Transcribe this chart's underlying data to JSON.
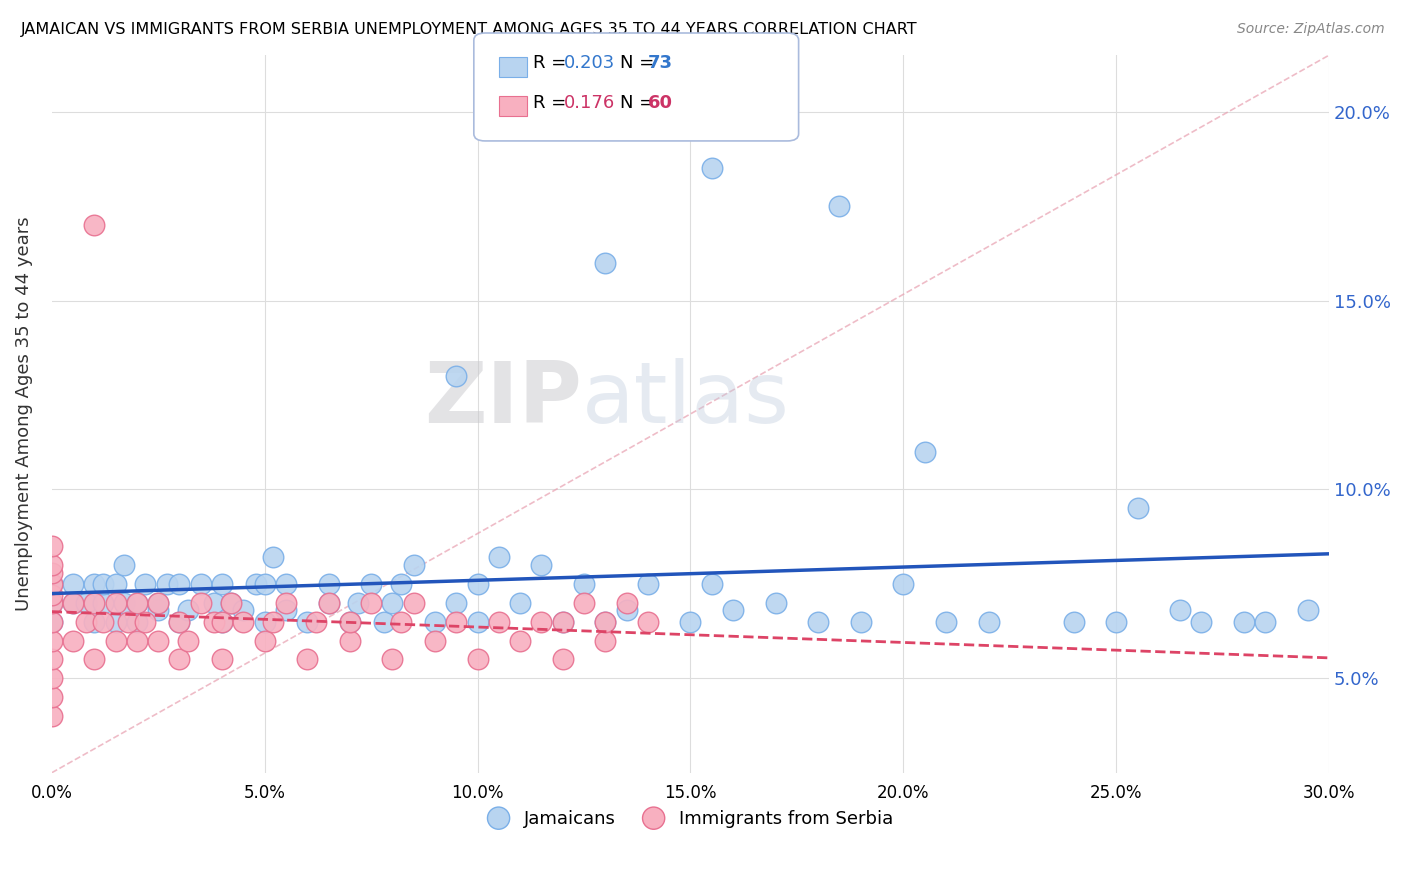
{
  "title": "JAMAICAN VS IMMIGRANTS FROM SERBIA UNEMPLOYMENT AMONG AGES 35 TO 44 YEARS CORRELATION CHART",
  "source": "Source: ZipAtlas.com",
  "ylabel": "Unemployment Among Ages 35 to 44 years",
  "xmin": 0.0,
  "xmax": 0.3,
  "ymin": 0.025,
  "ymax": 0.215,
  "jamaicans_color": "#b8d4f0",
  "jamaicans_edge_color": "#7aafe8",
  "serbia_color": "#f8b0c0",
  "serbia_edge_color": "#e87090",
  "trend_jamaicans_color": "#2255bb",
  "trend_serbia_color": "#dd4466",
  "trend_serbia_style": "--",
  "legend_R_jamaicans": "0.203",
  "legend_N_jamaicans": "73",
  "legend_R_serbia": "0.176",
  "legend_N_serbia": "60",
  "watermark_zip": "ZIP",
  "watermark_atlas": "atlas",
  "right_axis_color": "#3366cc",
  "yticks": [
    0.05,
    0.1,
    0.15,
    0.2
  ],
  "xticks": [
    0.0,
    0.05,
    0.1,
    0.15,
    0.2,
    0.25,
    0.3
  ],
  "jamaicans_x": [
    0.0,
    0.0,
    0.0,
    0.005,
    0.005,
    0.008,
    0.01,
    0.01,
    0.012,
    0.012,
    0.015,
    0.015,
    0.017,
    0.017,
    0.02,
    0.02,
    0.022,
    0.025,
    0.025,
    0.027,
    0.03,
    0.03,
    0.032,
    0.035,
    0.038,
    0.04,
    0.04,
    0.042,
    0.045,
    0.048,
    0.05,
    0.05,
    0.052,
    0.055,
    0.055,
    0.06,
    0.065,
    0.065,
    0.07,
    0.072,
    0.075,
    0.078,
    0.08,
    0.082,
    0.085,
    0.09,
    0.095,
    0.1,
    0.1,
    0.105,
    0.11,
    0.115,
    0.12,
    0.125,
    0.13,
    0.135,
    0.14,
    0.15,
    0.155,
    0.16,
    0.17,
    0.18,
    0.19,
    0.2,
    0.21,
    0.22,
    0.24,
    0.25,
    0.265,
    0.27,
    0.28,
    0.285,
    0.295
  ],
  "jamaicans_y": [
    0.07,
    0.075,
    0.065,
    0.07,
    0.075,
    0.07,
    0.065,
    0.075,
    0.07,
    0.075,
    0.065,
    0.075,
    0.07,
    0.08,
    0.065,
    0.07,
    0.075,
    0.068,
    0.07,
    0.075,
    0.065,
    0.075,
    0.068,
    0.075,
    0.07,
    0.065,
    0.075,
    0.07,
    0.068,
    0.075,
    0.065,
    0.075,
    0.082,
    0.068,
    0.075,
    0.065,
    0.07,
    0.075,
    0.065,
    0.07,
    0.075,
    0.065,
    0.07,
    0.075,
    0.08,
    0.065,
    0.07,
    0.065,
    0.075,
    0.082,
    0.07,
    0.08,
    0.065,
    0.075,
    0.065,
    0.068,
    0.075,
    0.065,
    0.075,
    0.068,
    0.07,
    0.065,
    0.065,
    0.075,
    0.065,
    0.065,
    0.065,
    0.065,
    0.068,
    0.065,
    0.065,
    0.065,
    0.068
  ],
  "jamaica_outliers_x": [
    0.095,
    0.13,
    0.155,
    0.185,
    0.205,
    0.255
  ],
  "jamaica_outliers_y": [
    0.13,
    0.16,
    0.185,
    0.175,
    0.11,
    0.095
  ],
  "jamaica_high_x": [
    0.155
  ],
  "jamaica_high_y": [
    0.185
  ],
  "serbia_x": [
    0.0,
    0.0,
    0.0,
    0.0,
    0.0,
    0.0,
    0.0,
    0.0,
    0.0,
    0.0,
    0.0,
    0.0,
    0.005,
    0.005,
    0.008,
    0.01,
    0.01,
    0.012,
    0.015,
    0.015,
    0.018,
    0.02,
    0.02,
    0.022,
    0.025,
    0.025,
    0.03,
    0.03,
    0.032,
    0.035,
    0.038,
    0.04,
    0.04,
    0.042,
    0.045,
    0.05,
    0.052,
    0.055,
    0.06,
    0.062,
    0.065,
    0.07,
    0.07,
    0.075,
    0.08,
    0.082,
    0.085,
    0.09,
    0.095,
    0.1,
    0.105,
    0.11,
    0.115,
    0.12,
    0.12,
    0.125,
    0.13,
    0.13,
    0.135,
    0.14
  ],
  "serbia_y": [
    0.04,
    0.045,
    0.05,
    0.055,
    0.06,
    0.065,
    0.07,
    0.072,
    0.075,
    0.078,
    0.08,
    0.085,
    0.06,
    0.07,
    0.065,
    0.055,
    0.07,
    0.065,
    0.06,
    0.07,
    0.065,
    0.06,
    0.07,
    0.065,
    0.06,
    0.07,
    0.055,
    0.065,
    0.06,
    0.07,
    0.065,
    0.055,
    0.065,
    0.07,
    0.065,
    0.06,
    0.065,
    0.07,
    0.055,
    0.065,
    0.07,
    0.06,
    0.065,
    0.07,
    0.055,
    0.065,
    0.07,
    0.06,
    0.065,
    0.055,
    0.065,
    0.06,
    0.065,
    0.055,
    0.065,
    0.07,
    0.06,
    0.065,
    0.07,
    0.065
  ],
  "serbia_outlier_x": [
    0.01
  ],
  "serbia_outlier_y": [
    0.17
  ]
}
